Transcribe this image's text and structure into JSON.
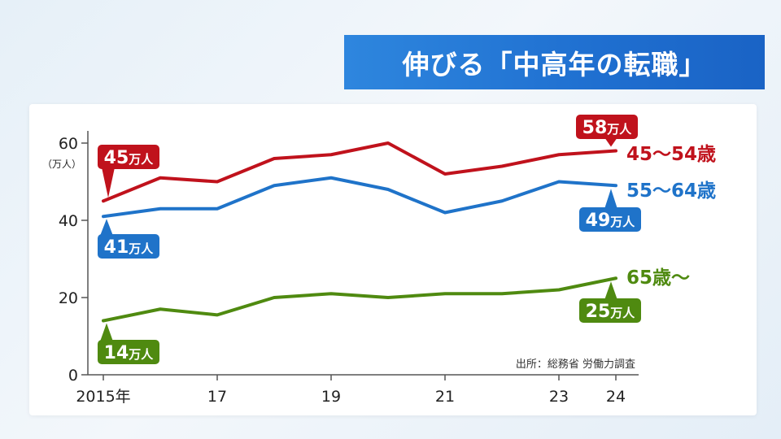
{
  "title": "伸びる「中高年の転職」",
  "source": "出所：総務省 労働力調査",
  "chart_data": {
    "type": "line",
    "ylabel": "（万人）",
    "ylim": [
      0,
      60
    ],
    "yticks": [
      0,
      20,
      40,
      60
    ],
    "x": [
      2015,
      2016,
      2017,
      2018,
      2019,
      2020,
      2021,
      2022,
      2023,
      2024
    ],
    "xtick_labels": [
      {
        "x": 2015,
        "label": "2015年"
      },
      {
        "x": 2017,
        "label": "17"
      },
      {
        "x": 2019,
        "label": "19"
      },
      {
        "x": 2021,
        "label": "21"
      },
      {
        "x": 2023,
        "label": "23"
      },
      {
        "x": 2024,
        "label": "24"
      }
    ],
    "series": [
      {
        "name": "45～54歳",
        "color": "#c0121c",
        "values": [
          45,
          51,
          50,
          56,
          57,
          60,
          52,
          54,
          57,
          58
        ],
        "start_label": "45万人",
        "end_label": "58万人"
      },
      {
        "name": "55～64歳",
        "color": "#1f73c9",
        "values": [
          41,
          43,
          43,
          49,
          51,
          48,
          42,
          45,
          50,
          49
        ],
        "start_label": "41万人",
        "end_label": "49万人"
      },
      {
        "name": "65歳～",
        "color": "#4f8a10",
        "values": [
          14,
          17,
          15.5,
          20,
          21,
          20,
          21,
          21,
          22,
          25
        ],
        "start_label": "14万人",
        "end_label": "25万人"
      }
    ]
  }
}
